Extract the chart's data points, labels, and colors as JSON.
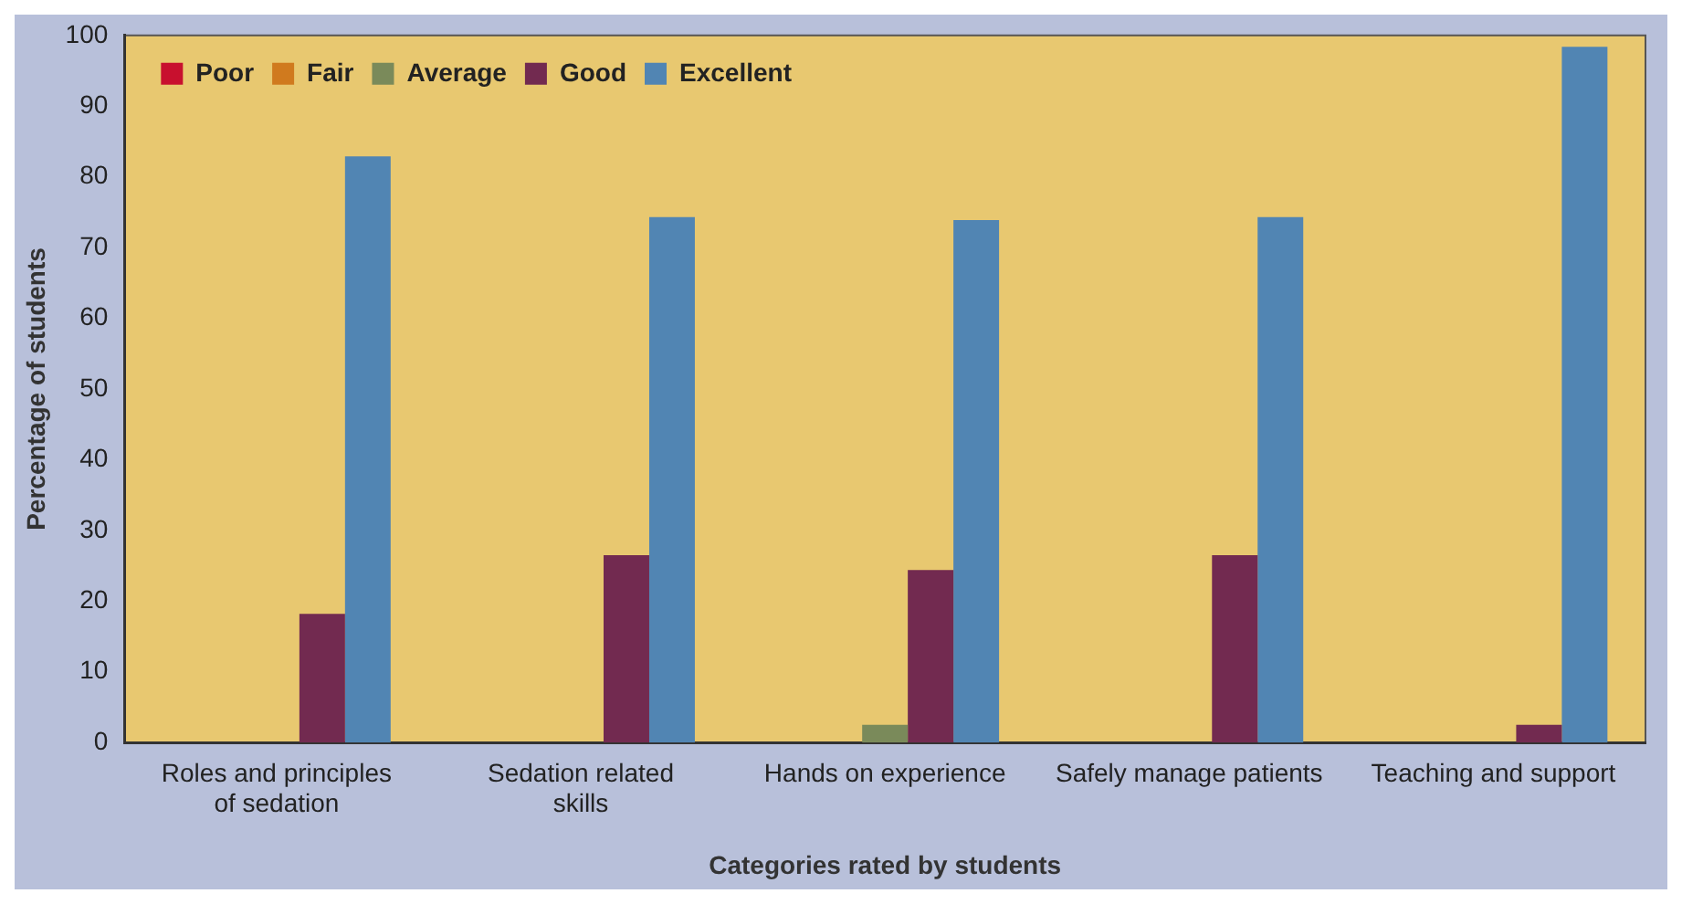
{
  "chart_data": {
    "type": "bar",
    "xlabel": "Categories rated by students",
    "ylabel": "Percentage of students",
    "categories": [
      "Roles and principles of sedation",
      "Sedation related skills",
      "Hands on experience",
      "Safely manage patients",
      "Teaching and support"
    ],
    "series": [
      {
        "name": "Poor",
        "color": "#c8102e",
        "values": [
          0,
          0,
          0,
          0,
          0
        ]
      },
      {
        "name": "Fair",
        "color": "#d07a1e",
        "values": [
          0,
          0,
          0,
          0,
          0
        ]
      },
      {
        "name": "Average",
        "color": "#7a8a5a",
        "values": [
          0,
          0,
          2.5,
          0,
          0
        ]
      },
      {
        "name": "Good",
        "color": "#722a50",
        "values": [
          18.2,
          26.5,
          24.4,
          26.5,
          2.5
        ]
      },
      {
        "name": "Excellent",
        "color": "#5185b3",
        "values": [
          82.9,
          74.3,
          73.9,
          74.3,
          98.4
        ]
      }
    ],
    "ylim": [
      0,
      100
    ],
    "yticks": [
      0,
      10,
      20,
      30,
      40,
      50,
      60,
      70,
      80,
      90,
      100
    ],
    "grid": false,
    "legend": "top left"
  }
}
